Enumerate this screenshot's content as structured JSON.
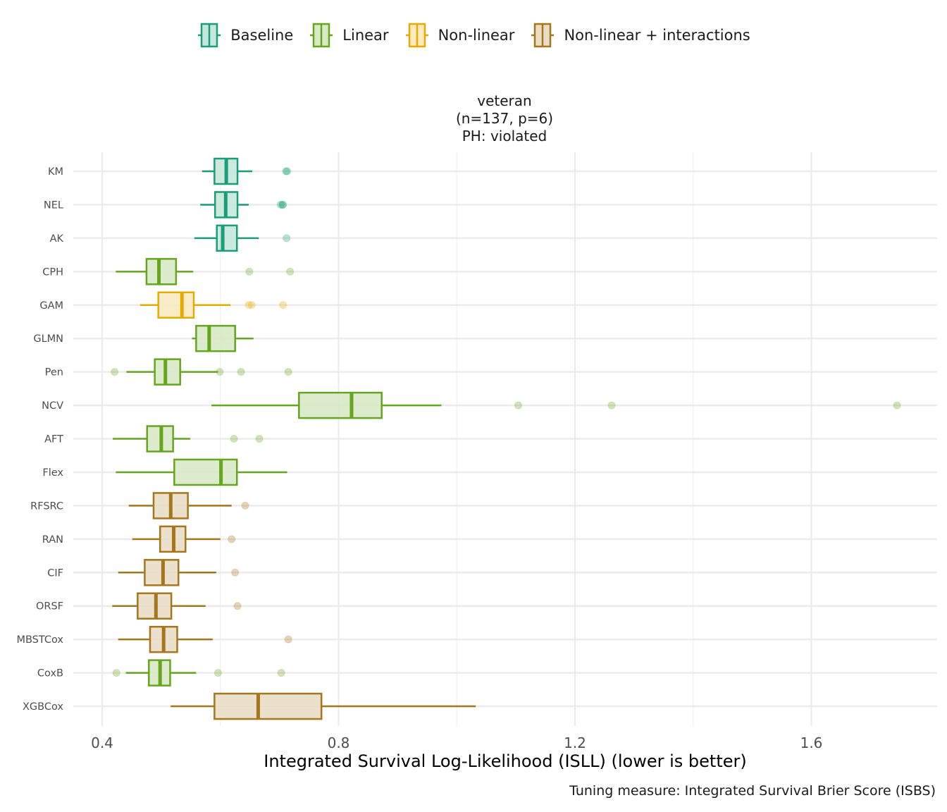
{
  "legend": {
    "items": [
      {
        "label": "Baseline",
        "color": "#1b9e77",
        "fill": "#c5e7dc"
      },
      {
        "label": "Linear",
        "color": "#66a61e",
        "fill": "#d9e9c8"
      },
      {
        "label": "Non-linear",
        "color": "#e6ab02",
        "fill": "#f9eac0"
      },
      {
        "label": "Non-linear + interactions",
        "color": "#a6761d",
        "fill": "#e9ddc6"
      }
    ]
  },
  "facet": {
    "line1": "veteran",
    "line2": "(n=137, p=6)",
    "line3": "PH: violated"
  },
  "chart_data": {
    "type": "boxplot",
    "orientation": "horizontal",
    "title": "veteran (n=137, p=6) PH: violated",
    "xlabel": "Integrated Survival Log-Likelihood (ISLL) (lower is better)",
    "ylabel": "",
    "caption": "Tuning measure: Integrated Survival Brier Score (ISBS)",
    "xlim": [
      0.35,
      1.81
    ],
    "x_ticks": [
      0.4,
      0.8,
      1.2,
      1.6
    ],
    "x_tick_labels": [
      "0.4",
      "0.8",
      "1.2",
      "1.6"
    ],
    "grid": true,
    "legend_position": "top",
    "categories": [
      "KM",
      "NEL",
      "AK",
      "CPH",
      "GAM",
      "GLMN",
      "Pen",
      "NCV",
      "AFT",
      "Flex",
      "RFSRC",
      "RAN",
      "CIF",
      "ORSF",
      "MBSTCox",
      "CoxB",
      "XGBCox"
    ],
    "boxes": [
      {
        "name": "KM",
        "group": "Baseline",
        "whisker_low": 0.569,
        "q1": 0.59,
        "median": 0.61,
        "q3": 0.629,
        "whisker_high": 0.654,
        "outliers": [
          0.711,
          0.713
        ]
      },
      {
        "name": "NEL",
        "group": "Baseline",
        "whisker_low": 0.566,
        "q1": 0.591,
        "median": 0.609,
        "q3": 0.629,
        "whisker_high": 0.648,
        "outliers": [
          0.702,
          0.705,
          0.706
        ]
      },
      {
        "name": "AK",
        "group": "Baseline",
        "whisker_low": 0.556,
        "q1": 0.594,
        "median": 0.604,
        "q3": 0.628,
        "whisker_high": 0.665,
        "outliers": [
          0.712
        ]
      },
      {
        "name": "CPH",
        "group": "Linear",
        "whisker_low": 0.423,
        "q1": 0.475,
        "median": 0.496,
        "q3": 0.525,
        "whisker_high": 0.554,
        "outliers": [
          0.649,
          0.718
        ]
      },
      {
        "name": "GAM",
        "group": "Non-linear",
        "whisker_low": 0.464,
        "q1": 0.495,
        "median": 0.535,
        "q3": 0.555,
        "whisker_high": 0.617,
        "outliers": [
          0.648,
          0.653,
          0.706
        ]
      },
      {
        "name": "GLMN",
        "group": "Linear",
        "whisker_low": 0.552,
        "q1": 0.559,
        "median": 0.581,
        "q3": 0.625,
        "whisker_high": 0.656,
        "outliers": []
      },
      {
        "name": "Pen",
        "group": "Linear",
        "whisker_low": 0.441,
        "q1": 0.489,
        "median": 0.507,
        "q3": 0.532,
        "whisker_high": 0.596,
        "outliers": [
          0.421,
          0.599,
          0.635,
          0.715
        ]
      },
      {
        "name": "NCV",
        "group": "Linear",
        "whisker_low": 0.585,
        "q1": 0.733,
        "median": 0.822,
        "q3": 0.873,
        "whisker_high": 0.974,
        "outliers": [
          1.104,
          1.262,
          1.745
        ]
      },
      {
        "name": "AFT",
        "group": "Linear",
        "whisker_low": 0.418,
        "q1": 0.476,
        "median": 0.5,
        "q3": 0.52,
        "whisker_high": 0.549,
        "outliers": [
          0.623,
          0.666
        ]
      },
      {
        "name": "Flex",
        "group": "Linear",
        "whisker_low": 0.423,
        "q1": 0.522,
        "median": 0.601,
        "q3": 0.628,
        "whisker_high": 0.713,
        "outliers": []
      },
      {
        "name": "RFSRC",
        "group": "Non-linear + interactions",
        "whisker_low": 0.445,
        "q1": 0.487,
        "median": 0.516,
        "q3": 0.545,
        "whisker_high": 0.619,
        "outliers": [
          0.642
        ]
      },
      {
        "name": "RAN",
        "group": "Non-linear + interactions",
        "whisker_low": 0.451,
        "q1": 0.498,
        "median": 0.521,
        "q3": 0.541,
        "whisker_high": 0.6,
        "outliers": [
          0.619
        ]
      },
      {
        "name": "CIF",
        "group": "Non-linear + interactions",
        "whisker_low": 0.427,
        "q1": 0.472,
        "median": 0.503,
        "q3": 0.529,
        "whisker_high": 0.593,
        "outliers": [
          0.625
        ]
      },
      {
        "name": "ORSF",
        "group": "Non-linear + interactions",
        "whisker_low": 0.417,
        "q1": 0.46,
        "median": 0.491,
        "q3": 0.517,
        "whisker_high": 0.575,
        "outliers": [
          0.629
        ]
      },
      {
        "name": "MBSTCox",
        "group": "Non-linear + interactions",
        "whisker_low": 0.427,
        "q1": 0.481,
        "median": 0.504,
        "q3": 0.527,
        "whisker_high": 0.587,
        "outliers": [
          0.715
        ]
      },
      {
        "name": "CoxB",
        "group": "Linear",
        "whisker_low": 0.44,
        "q1": 0.479,
        "median": 0.498,
        "q3": 0.515,
        "whisker_high": 0.559,
        "outliers": [
          0.424,
          0.596,
          0.703
        ]
      },
      {
        "name": "XGBCox",
        "group": "Non-linear + interactions",
        "whisker_low": 0.516,
        "q1": 0.59,
        "median": 0.664,
        "q3": 0.771,
        "whisker_high": 1.032,
        "outliers": []
      }
    ]
  }
}
